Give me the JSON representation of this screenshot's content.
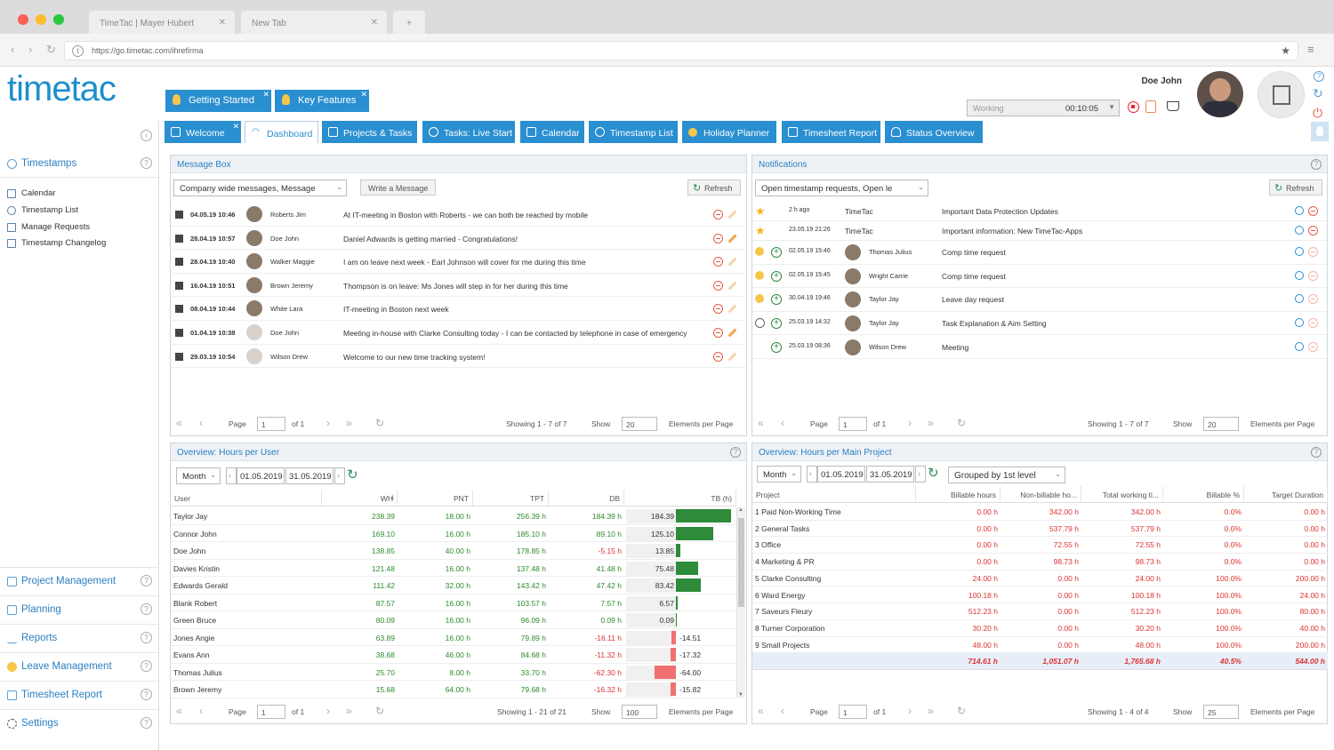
{
  "browser": {
    "tabs": [
      {
        "label": "TimeTac | Mayer Hubert"
      },
      {
        "label": "New Tab"
      }
    ],
    "url": "https://go.timetac.com/ihrefirma"
  },
  "header": {
    "logo_text": "timetac",
    "quick_buttons": [
      {
        "label": "Getting Started"
      },
      {
        "label": "Key Features"
      }
    ],
    "user_name": "Doe John",
    "status_select": "Working",
    "timer": "00:10:05"
  },
  "tabs": [
    {
      "label": "Welcome"
    },
    {
      "label": "Dashboard"
    },
    {
      "label": "Projects & Tasks"
    },
    {
      "label": "Tasks: Live Start"
    },
    {
      "label": "Calendar"
    },
    {
      "label": "Timestamp List"
    },
    {
      "label": "Holiday Planner"
    },
    {
      "label": "Timesheet Report"
    },
    {
      "label": "Status Overview"
    }
  ],
  "sidebar": {
    "top_section": "Timestamps",
    "items": [
      {
        "label": "Calendar"
      },
      {
        "label": "Timestamp List"
      },
      {
        "label": "Manage Requests"
      },
      {
        "label": "Timestamp Changelog"
      }
    ],
    "sections": [
      {
        "label": "Project Management"
      },
      {
        "label": "Planning"
      },
      {
        "label": "Reports"
      },
      {
        "label": "Leave Management"
      },
      {
        "label": "Timesheet Report"
      },
      {
        "label": "Settings"
      }
    ]
  },
  "message_box": {
    "title": "Message Box",
    "filter": "Company wide messages, Message",
    "write_button": "Write a Message",
    "refresh": "Refresh",
    "rows": [
      {
        "date": "04.05.19 10:46",
        "name": "Roberts Jim",
        "text": "At IT-meeting in Boston with Roberts - we can both be reached by mobile"
      },
      {
        "date": "28.04.19 10:57",
        "name": "Doe John",
        "text": "Daniel Adwards is getting married - Congratulations!"
      },
      {
        "date": "28.04.19 10:40",
        "name": "Walker Maggie",
        "text": "I am on leave next week - Earl Johnson will cover for me during this time"
      },
      {
        "date": "16.04.19 10:51",
        "name": "Brown Jeremy",
        "text": "Thompson is on leave: Ms Jones will step in for her during this time"
      },
      {
        "date": "08.04.19 10:44",
        "name": "White Lara",
        "text": "IT-meeting in Boston next week"
      },
      {
        "date": "01.04.19 10:38",
        "name": "Doe John",
        "text": "Meeting in-house with Clarke Consulting today - I can be contacted by telephone in case of emergency"
      },
      {
        "date": "29.03.19 10:54",
        "name": "Wilson Drew",
        "text": "Welcome to our new time tracking system!"
      }
    ],
    "pager": {
      "page_label": "Page",
      "page": "1",
      "of": "of 1",
      "showing": "Showing 1 - 7 of 7",
      "show": "Show",
      "per_page": "20",
      "elements": "Elements per Page"
    }
  },
  "notifications": {
    "title": "Notifications",
    "filter": "Open timestamp requests, Open le",
    "refresh": "Refresh",
    "rows": [
      {
        "date": "2 h ago",
        "name": "TimeTac",
        "text": "Important Data Protection Updates"
      },
      {
        "date": "23.05.19 21:26",
        "name": "TimeTac",
        "text": "Important information: New TimeTac-Apps"
      },
      {
        "date": "02.05.19 15:46",
        "name": "Thomas Julius",
        "text": "Comp time request"
      },
      {
        "date": "02.05.19 15:45",
        "name": "Wright Carrie",
        "text": "Comp time request"
      },
      {
        "date": "30.04.19 19:46",
        "name": "Taylor Jay",
        "text": "Leave day request"
      },
      {
        "date": "25.03.19 14:32",
        "name": "Taylor Jay",
        "text": "Task Explanation & Aim Setting"
      },
      {
        "date": "25.03.19 08:36",
        "name": "Wilson Drew",
        "text": "Meeting"
      }
    ],
    "pager": {
      "page_label": "Page",
      "page": "1",
      "of": "of 1",
      "showing": "Showing 1 - 7 of 7",
      "show": "Show",
      "per_page": "20",
      "elements": "Elements per Page"
    }
  },
  "hours_user": {
    "title": "Overview: Hours per User",
    "period": "Month",
    "from": "01.05.2019",
    "to": "31.05.2019",
    "columns": [
      "User",
      "WH",
      "PNT",
      "TPT",
      "DB",
      "TB (h)"
    ],
    "tb_max": 184.39,
    "rows": [
      {
        "user": "Taylor Jay",
        "wh": "238.39",
        "pnt": "18.00 h",
        "tpt": "256.39 h",
        "db": "184.39 h",
        "tb": 184.39,
        "tb_label": "184.39"
      },
      {
        "user": "Connor John",
        "wh": "169.10",
        "pnt": "16.00 h",
        "tpt": "185.10 h",
        "db": "89.10 h",
        "tb": 125.1,
        "tb_label": "125.10"
      },
      {
        "user": "Doe John",
        "wh": "138.85",
        "pnt": "40.00 h",
        "tpt": "178.85 h",
        "db": "-5.15 h",
        "tb": 13.85,
        "tb_label": "13.85"
      },
      {
        "user": "Davies Kristin",
        "wh": "121.48",
        "pnt": "16.00 h",
        "tpt": "137.48 h",
        "db": "41.48 h",
        "tb": 75.48,
        "tb_label": "75.48"
      },
      {
        "user": "Edwards Gerald",
        "wh": "111.42",
        "pnt": "32.00 h",
        "tpt": "143.42 h",
        "db": "47.42 h",
        "tb": 83.42,
        "tb_label": "83.42"
      },
      {
        "user": "Blank Robert",
        "wh": "87.57",
        "pnt": "16.00 h",
        "tpt": "103.57 h",
        "db": "7.57 h",
        "tb": 6.57,
        "tb_label": "6.57"
      },
      {
        "user": "Green Bruce",
        "wh": "80.09",
        "pnt": "16.00 h",
        "tpt": "96.09 h",
        "db": "0.09 h",
        "tb": 0.09,
        "tb_label": "0.09"
      },
      {
        "user": "Jones Angie",
        "wh": "63.89",
        "pnt": "16.00 h",
        "tpt": "79.89 h",
        "db": "-16.11 h",
        "tb": -14.51,
        "tb_label": "-14.51"
      },
      {
        "user": "Evans Ann",
        "wh": "38.68",
        "pnt": "46.00 h",
        "tpt": "84.68 h",
        "db": "-11.32 h",
        "tb": -17.32,
        "tb_label": "-17.32"
      },
      {
        "user": "Thomas Julius",
        "wh": "25.70",
        "pnt": "8.00 h",
        "tpt": "33.70 h",
        "db": "-62.30 h",
        "tb": -64.0,
        "tb_label": "-64.00"
      },
      {
        "user": "Brown Jeremy",
        "wh": "15.68",
        "pnt": "64.00 h",
        "tpt": "79.68 h",
        "db": "-16.32 h",
        "tb": -15.82,
        "tb_label": "-15.82"
      }
    ],
    "pager": {
      "page_label": "Page",
      "page": "1",
      "of": "of 1",
      "showing": "Showing 1 - 21 of 21",
      "show": "Show",
      "per_page": "100",
      "elements": "Elements per Page"
    }
  },
  "hours_project": {
    "title": "Overview: Hours per Main Project",
    "period": "Month",
    "from": "01.05.2019",
    "to": "31.05.2019",
    "grouping": "Grouped by 1st level",
    "columns": [
      "Project",
      "Billable hours",
      "Non-billable ho...",
      "Total working ti...",
      "Billable %",
      "Target Duration"
    ],
    "rows": [
      {
        "project": "1 Paid Non-Working Time",
        "bill": "0.00 h",
        "nonbill": "342.00 h",
        "total": "342.00 h",
        "pct": "0.0%",
        "target": "0.00 h"
      },
      {
        "project": "2 General Tasks",
        "bill": "0.00 h",
        "nonbill": "537.79 h",
        "total": "537.79 h",
        "pct": "0.0%",
        "target": "0.00 h"
      },
      {
        "project": "3 Office",
        "bill": "0.00 h",
        "nonbill": "72.55 h",
        "total": "72.55 h",
        "pct": "0.0%",
        "target": "0.00 h"
      },
      {
        "project": "4 Marketing & PR",
        "bill": "0.00 h",
        "nonbill": "98.73 h",
        "total": "98.73 h",
        "pct": "0.0%",
        "target": "0.00 h"
      },
      {
        "project": "5 Clarke Consulting",
        "bill": "24.00 h",
        "nonbill": "0.00 h",
        "total": "24.00 h",
        "pct": "100.0%",
        "target": "200.00 h"
      },
      {
        "project": "6 Ward Energy",
        "bill": "100.18 h",
        "nonbill": "0.00 h",
        "total": "100.18 h",
        "pct": "100.0%",
        "target": "24.00 h"
      },
      {
        "project": "7 Saveurs Fleury",
        "bill": "512.23 h",
        "nonbill": "0.00 h",
        "total": "512.23 h",
        "pct": "100.0%",
        "target": "80.00 h"
      },
      {
        "project": "8 Turner Corporation",
        "bill": "30.20 h",
        "nonbill": "0.00 h",
        "total": "30.20 h",
        "pct": "100.0%",
        "target": "40.00 h"
      },
      {
        "project": "9 Small Projects",
        "bill": "48.00 h",
        "nonbill": "0.00 h",
        "total": "48.00 h",
        "pct": "100.0%",
        "target": "200.00 h"
      }
    ],
    "totals": {
      "bill": "714.61 h",
      "nonbill": "1,051.07 h",
      "total": "1,765.68 h",
      "pct": "40.5%",
      "target": "544.00 h"
    },
    "pager": {
      "page_label": "Page",
      "page": "1",
      "of": "of 1",
      "showing": "Showing 1 - 4 of 4",
      "show": "Show",
      "per_page": "25",
      "elements": "Elements per Page"
    }
  },
  "colors": {
    "brand": "#2a8fd0",
    "positive": "#2e8b3a",
    "negative": "#f07070"
  }
}
